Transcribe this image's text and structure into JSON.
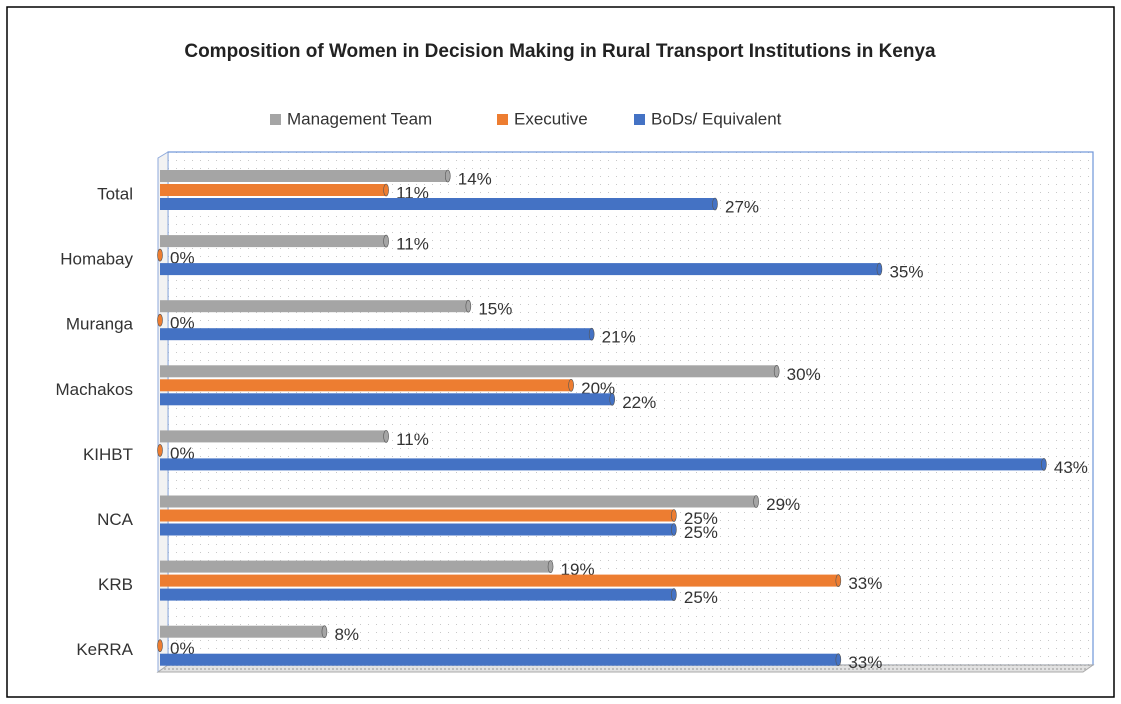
{
  "chart_data": {
    "type": "bar",
    "orientation": "horizontal",
    "title": "Composition of Women in Decision Making in Rural Transport Institutions in Kenya",
    "categories": [
      "Total",
      "Homabay",
      "Muranga",
      "Machakos",
      "KIHBT",
      "NCA",
      "KRB",
      "KeRRA"
    ],
    "series": [
      {
        "name": "Management Team",
        "color": "#a5a5a5",
        "values": [
          14,
          11,
          15,
          30,
          11,
          29,
          19,
          8
        ],
        "value_labels": [
          "14%",
          "11%",
          "15%",
          "30%",
          "11%",
          "29%",
          "19%",
          "8%"
        ]
      },
      {
        "name": "Executive",
        "color": "#ed7d31",
        "values": [
          11,
          0,
          0,
          20,
          0,
          25,
          33,
          0
        ],
        "value_labels": [
          "11%",
          "0%",
          "0%",
          "20%",
          "0%",
          "25%",
          "33%",
          "0%"
        ]
      },
      {
        "name": "BoDs/ Equivalent",
        "color": "#4472c4",
        "values": [
          27,
          35,
          21,
          22,
          43,
          25,
          25,
          33
        ],
        "value_labels": [
          "27%",
          "35%",
          "21%",
          "22%",
          "43%",
          "25%",
          "25%",
          "33%"
        ]
      }
    ],
    "xlim": [
      0,
      45
    ],
    "legend": "top"
  }
}
